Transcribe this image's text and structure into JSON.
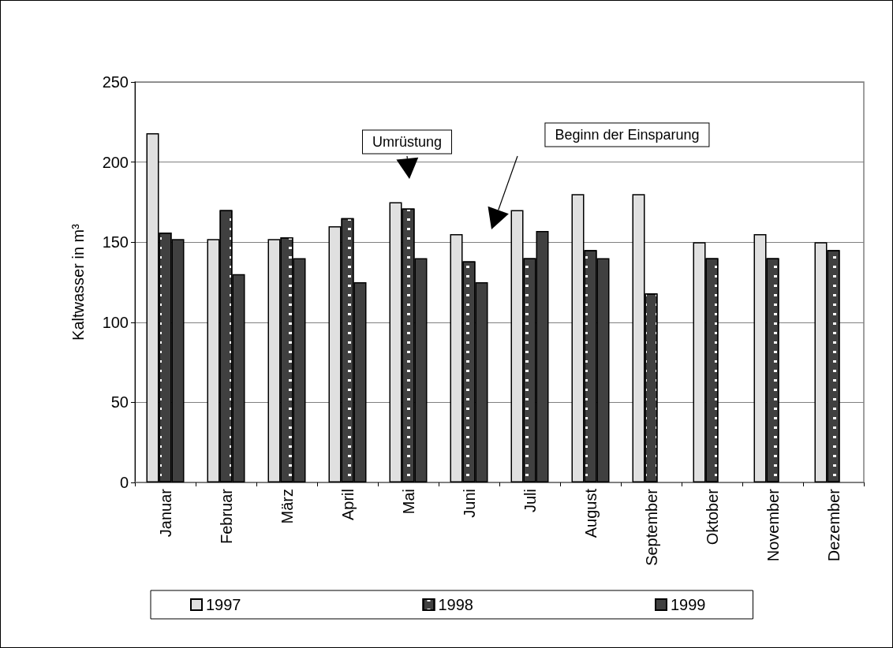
{
  "chart_data": {
    "type": "bar",
    "ylabel": "Kaltwasser in m³",
    "categories": [
      "Januar",
      "Februar",
      "März",
      "April",
      "Mai",
      "Juni",
      "Juli",
      "August",
      "September",
      "Oktober",
      "November",
      "Dezember"
    ],
    "series": [
      {
        "name": "1997",
        "color": "#e0e0e0",
        "values": [
          218,
          152,
          152,
          160,
          175,
          155,
          170,
          180,
          180,
          150,
          155,
          150
        ]
      },
      {
        "name": "1998",
        "color": "#404040",
        "values": [
          156,
          170,
          153,
          165,
          171,
          138,
          140,
          145,
          118,
          140,
          140,
          145
        ]
      },
      {
        "name": "1999",
        "color": "#404040",
        "values": [
          152,
          130,
          140,
          125,
          140,
          125,
          157,
          140,
          null,
          null,
          null,
          null
        ]
      }
    ],
    "ylim": [
      0,
      250
    ],
    "yticks": [
      0,
      50,
      100,
      150,
      200,
      250
    ],
    "grid": "y",
    "legend": "bottom",
    "annotations": [
      "Umrüstung",
      "Beginn der Einsparung"
    ]
  }
}
